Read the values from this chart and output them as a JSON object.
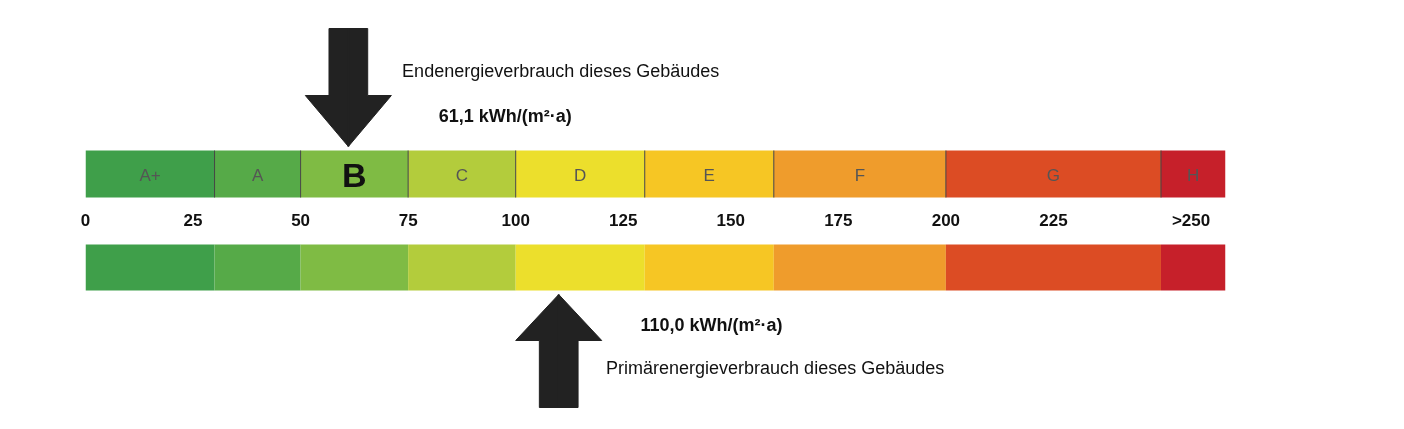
{
  "chart_data": {
    "type": "bar",
    "orientation": "horizontal",
    "stacked": true,
    "categories": [
      null,
      null
    ],
    "series": [
      {
        "name": "A+",
        "color": "#3f9f4a",
        "values": [
          30,
          30
        ]
      },
      {
        "name": "A",
        "color": "#56aa48",
        "values": [
          20,
          20
        ]
      },
      {
        "name": "B",
        "color": "#7fbb44",
        "values": [
          25,
          25
        ]
      },
      {
        "name": "C",
        "color": "#b3cc3c",
        "values": [
          25,
          25
        ]
      },
      {
        "name": "D",
        "color": "#ecdf2c",
        "values": [
          30,
          30
        ]
      },
      {
        "name": "E",
        "color": "#f6c624",
        "values": [
          30,
          30
        ]
      },
      {
        "name": "F",
        "color": "#ef9c2c",
        "values": [
          40,
          40
        ]
      },
      {
        "name": "G",
        "color": "#dc4c24",
        "values": [
          50,
          50
        ]
      },
      {
        "name": "H",
        "color": "#c6202a",
        "values": [
          15,
          15
        ]
      }
    ],
    "xlim": [
      0,
      265
    ],
    "xticks": [
      0,
      25,
      50,
      75,
      100,
      125,
      150,
      175,
      200,
      225,
      {
        "value": 257,
        "label": ">250"
      }
    ],
    "ref_lines": [
      {
        "axis": "x",
        "value": 61.1,
        "label": "Endenergieverbrauch dieses Gebäudes",
        "color": "#222222"
      },
      {
        "axis": "x",
        "value": 110.0,
        "label": "Primärenergieverbrauch dieses Gebäudes",
        "color": "#222222"
      }
    ],
    "annotations": [
      "61,1     kWh/(m²·a)",
      "110,0     kWh/(m²·a)"
    ]
  }
}
